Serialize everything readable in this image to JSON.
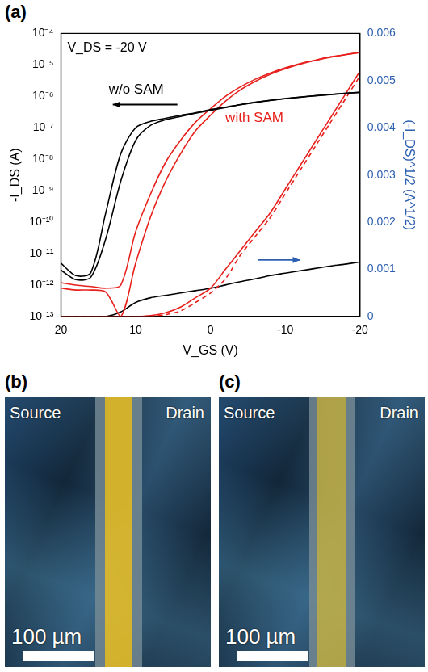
{
  "chart_data": {
    "type": "line",
    "panel_label": "(a)",
    "x_label": "V_GS (V)",
    "y_label": "-I_DS (A)",
    "y2_label": "(-I_DS)^1/2 (A^1/2)",
    "annotations": [
      {
        "text": "V_DS = -20 V",
        "color": "#000000"
      },
      {
        "text": "w/o SAM",
        "color": "#000000"
      },
      {
        "text": "with SAM",
        "color": "#e8201c"
      }
    ],
    "log": "y",
    "grid": false,
    "x": [
      20,
      18,
      16,
      14,
      12,
      10,
      8,
      6,
      4,
      2,
      0,
      -2,
      -4,
      -6,
      -8,
      -10,
      -12,
      -14,
      -16,
      -18,
      -20
    ],
    "xlim": [
      20,
      -20
    ],
    "xticks": [
      20,
      10,
      0,
      -10,
      -20
    ],
    "ylim": [
      1e-13,
      0.0001
    ],
    "yticks": [
      {
        "value": 1e-13,
        "label": "10⁻¹³"
      },
      {
        "value": 1e-12,
        "label": "10⁻¹²"
      },
      {
        "value": 1e-11,
        "label": "10⁻¹¹"
      },
      {
        "value": 1e-10,
        "label": "10⁻¹⁰"
      },
      {
        "value": 1e-09,
        "label": "10⁻⁹"
      },
      {
        "value": 1e-08,
        "label": "10⁻⁸"
      },
      {
        "value": 1e-07,
        "label": "10⁻⁷"
      },
      {
        "value": 1e-06,
        "label": "10⁻⁶"
      },
      {
        "value": 1e-05,
        "label": "10⁻⁵"
      },
      {
        "value": 0.0001,
        "label": "10⁻⁴"
      }
    ],
    "y2lim": [
      0,
      0.006
    ],
    "y2ticks": [
      0,
      0.001,
      0.002,
      0.003,
      0.004,
      0.005,
      0.006
    ],
    "series": [
      {
        "color": "#000000",
        "line_style": "solid",
        "values": [
          5e-12,
          2e-12,
          2.5e-12,
          2e-10,
          1.5e-08,
          1e-07,
          1.6e-07,
          2e-07,
          2.5e-07,
          3e-07,
          3.8e-07,
          4.5e-07,
          5.5e-07,
          6.5e-07,
          7.5e-07,
          8.5e-07,
          9.5e-07,
          1.05e-06,
          1.15e-06,
          1.25e-06,
          1.35e-06
        ]
      },
      {
        "color": "#000000",
        "line_style": "solid",
        "values": [
          3e-12,
          1.5e-12,
          1.8e-12,
          3e-11,
          2e-09,
          4e-08,
          1.2e-07,
          1.8e-07,
          2.3e-07,
          2.9e-07,
          3.6e-07,
          4.4e-07,
          5.4e-07,
          6.4e-07,
          7.4e-07,
          8.4e-07,
          9.4e-07,
          1.04e-06,
          1.14e-06,
          1.24e-06,
          1.34e-06
        ]
      },
      {
        "color": "#e8201c",
        "line_style": "solid",
        "values": [
          1.2e-12,
          1e-12,
          9e-13,
          8e-13,
          1e-12,
          5e-11,
          8e-10,
          8e-09,
          4e-08,
          1.5e-07,
          4e-07,
          1e-06,
          2e-06,
          3.5e-06,
          5.5e-06,
          8e-06,
          1.1e-05,
          1.4e-05,
          1.8e-05,
          2.1e-05,
          2.5e-05
        ]
      },
      {
        "color": "#e8201c",
        "line_style": "solid",
        "values": [
          8e-13,
          7e-13,
          7e-13,
          6e-13,
          1e-13,
          5e-12,
          1.5e-10,
          2e-09,
          1.5e-08,
          8e-08,
          2.5e-07,
          7e-07,
          1.6e-06,
          3e-06,
          5e-06,
          7.5e-06,
          1.05e-05,
          1.4e-05,
          1.75e-05,
          2.1e-05,
          2.5e-05
        ]
      },
      {
        "color": "#e8201c",
        "line_style": "solid",
        "axis": "y2",
        "values": [
          0,
          0,
          0,
          0,
          0,
          0,
          2e-05,
          8e-05,
          0.0002,
          0.0004,
          0.0006,
          0.001,
          0.0014,
          0.0018,
          0.0022,
          0.0027,
          0.0032,
          0.0037,
          0.0042,
          0.0047,
          0.0052
        ]
      },
      {
        "color": "#e8201c",
        "line_style": "dashed",
        "axis": "y2",
        "values": [
          0,
          0,
          0,
          0,
          0,
          0,
          1e-05,
          4e-05,
          0.00012,
          0.0003,
          0.0005,
          0.0008,
          0.0013,
          0.0017,
          0.0021,
          0.0026,
          0.0031,
          0.0036,
          0.0041,
          0.0046,
          0.0051
        ]
      },
      {
        "color": "#000000",
        "line_style": "solid",
        "axis": "y2",
        "values": [
          0,
          0,
          0,
          0,
          0.0001,
          0.0003,
          0.0004,
          0.00045,
          0.0005,
          0.00055,
          0.0006,
          0.00067,
          0.00074,
          0.0008,
          0.00087,
          0.00092,
          0.00097,
          0.00102,
          0.00107,
          0.00111,
          0.00116
        ]
      }
    ]
  },
  "images": [
    {
      "label": "(b)",
      "source": "Source",
      "drain": "Drain",
      "scale_bar": "100 µm"
    },
    {
      "label": "(c)",
      "source": "Source",
      "drain": "Drain",
      "scale_bar": "100 µm"
    }
  ]
}
